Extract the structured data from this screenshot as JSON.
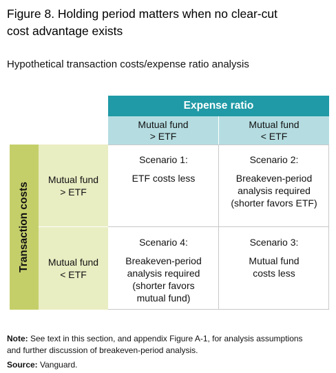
{
  "figure": {
    "title_line1": "Figure 8. Holding period matters when no clear-cut",
    "title_line2": "cost advantage exists",
    "subtitle": "Hypothetical transaction costs/expense ratio analysis"
  },
  "matrix": {
    "column_header": "Expense ratio",
    "columns": [
      {
        "line1": "Mutual fund",
        "line2": "> ETF"
      },
      {
        "line1": "Mutual fund",
        "line2": "< ETF"
      }
    ],
    "row_header": "Transaction costs",
    "rows": [
      {
        "line1": "Mutual fund",
        "line2": "> ETF"
      },
      {
        "line1": "Mutual fund",
        "line2": "< ETF"
      }
    ],
    "cells": {
      "r1c1": {
        "title": "Scenario 1:",
        "lines": [
          "ETF costs less"
        ]
      },
      "r1c2": {
        "title": "Scenario 2:",
        "lines": [
          "Breakeven-period",
          "analysis required",
          "(shorter favors ETF)"
        ]
      },
      "r2c1": {
        "title": "Scenario 4:",
        "lines": [
          "Breakeven-period",
          "analysis required",
          "(shorter favors",
          "mutual fund)"
        ]
      },
      "r2c2": {
        "title": "Scenario 3:",
        "lines": [
          "Mutual fund",
          "costs less"
        ]
      }
    }
  },
  "footer": {
    "note_label": "Note:",
    "note_line1": " See text in this section, and appendix Figure A-1, for analysis assumptions",
    "note_line2": "and further discussion of breakeven-period analysis.",
    "source_label": "Source:",
    "source_text": " Vanguard."
  },
  "colors": {
    "header_teal": "#1f9aa6",
    "subheader_light_teal": "#b5dde1",
    "side_olive": "#c5cf6a",
    "side_light_olive": "#e9edc2"
  }
}
